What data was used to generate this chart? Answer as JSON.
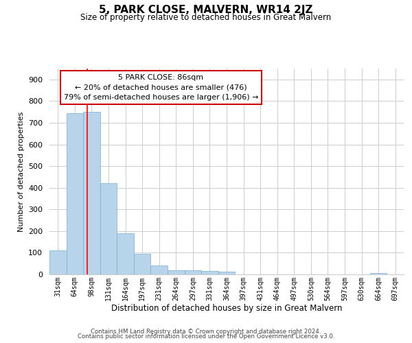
{
  "title": "5, PARK CLOSE, MALVERN, WR14 2JZ",
  "subtitle": "Size of property relative to detached houses in Great Malvern",
  "xlabel": "Distribution of detached houses by size in Great Malvern",
  "ylabel": "Number of detached properties",
  "bin_labels": [
    "31sqm",
    "64sqm",
    "98sqm",
    "131sqm",
    "164sqm",
    "197sqm",
    "231sqm",
    "264sqm",
    "297sqm",
    "331sqm",
    "364sqm",
    "397sqm",
    "431sqm",
    "464sqm",
    "497sqm",
    "530sqm",
    "564sqm",
    "597sqm",
    "630sqm",
    "664sqm",
    "697sqm"
  ],
  "bar_values": [
    110,
    745,
    750,
    420,
    190,
    95,
    42,
    20,
    20,
    15,
    13,
    0,
    0,
    0,
    0,
    0,
    0,
    0,
    0,
    5,
    0
  ],
  "bar_color": "#b8d4ea",
  "bar_edgecolor": "#7aaece",
  "ylim": [
    0,
    950
  ],
  "yticks": [
    0,
    100,
    200,
    300,
    400,
    500,
    600,
    700,
    800,
    900
  ],
  "red_line_x": 1.72,
  "annotation_title": "5 PARK CLOSE: 86sqm",
  "annotation_line1": "← 20% of detached houses are smaller (476)",
  "annotation_line2": "79% of semi-detached houses are larger (1,906) →",
  "annotation_box_color": "#ffffff",
  "annotation_box_edgecolor": "#cc0000",
  "footer_line1": "Contains HM Land Registry data © Crown copyright and database right 2024.",
  "footer_line2": "Contains public sector information licensed under the Open Government Licence v3.0.",
  "background_color": "#ffffff",
  "grid_color": "#cccccc"
}
